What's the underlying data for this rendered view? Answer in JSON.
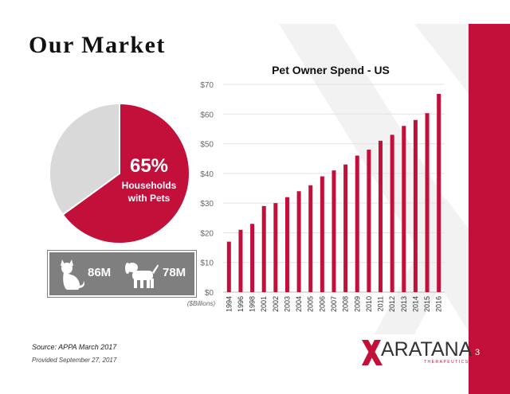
{
  "slide": {
    "title": "Our Market",
    "page_number": "3",
    "source": "Source: APPA March 2017",
    "provided": "Provided September 27, 2017"
  },
  "pie": {
    "percent_label": "65%",
    "caption_line1": "Households",
    "caption_line2": "with Pets",
    "share": 65,
    "colors": {
      "highlight": "#c3103a",
      "rest": "#d9d9d9"
    }
  },
  "pets": {
    "cat_count": "86M",
    "dog_count": "78M",
    "cat_icon": "cat-icon",
    "dog_icon": "dog-icon"
  },
  "logo": {
    "name": "ARATANA",
    "tagline": "THERAPEUTICS"
  },
  "chart_data": {
    "type": "bar",
    "title": "Pet Owner Spend - US",
    "unit_label": "($Billions)",
    "categories": [
      "1994",
      "1996",
      "1998",
      "2001",
      "2002",
      "2003",
      "2004",
      "2005",
      "2006",
      "2007",
      "2008",
      "2009",
      "2010",
      "2011",
      "2012",
      "2013",
      "2014",
      "2015",
      "2016"
    ],
    "values": [
      17,
      21,
      23,
      29,
      30,
      32,
      34,
      36,
      39,
      41,
      43,
      46,
      48,
      51,
      53,
      56,
      58,
      60.3,
      66.8
    ],
    "ylim": [
      0,
      70
    ],
    "y_ticks": [
      "$0",
      "$10",
      "$20",
      "$30",
      "$40",
      "$50",
      "$60",
      "$70"
    ],
    "grid": true,
    "legend": "none",
    "bar_color": "#c3103a"
  }
}
